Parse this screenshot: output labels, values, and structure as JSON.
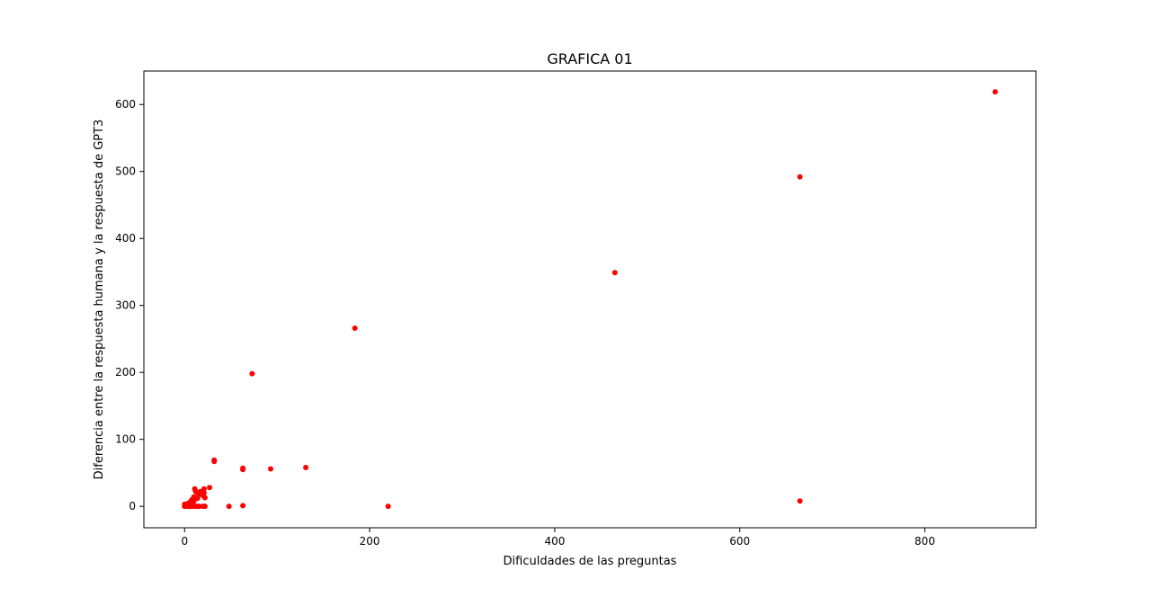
{
  "chart_data": {
    "type": "scatter",
    "title": "GRAFICA 01",
    "xlabel": "Dificuldades de las preguntas",
    "ylabel": "Diferencia entre la respuesta humana y la respuesta de GPT3",
    "xlim": [
      -44,
      920
    ],
    "ylim": [
      -32,
      650
    ],
    "x_ticks": [
      0,
      200,
      400,
      600,
      800
    ],
    "y_ticks": [
      0,
      100,
      200,
      300,
      400,
      500,
      600
    ],
    "x_tick_labels": [
      "0",
      "200",
      "400",
      "600",
      "800"
    ],
    "y_tick_labels": [
      "0",
      "100",
      "200",
      "300",
      "400",
      "500",
      "600"
    ],
    "grid": false,
    "legend": "none",
    "marker_color": "#ff0000",
    "series": [
      {
        "x": [
          876,
          665,
          665,
          465,
          184,
          220,
          73,
          131,
          93,
          63,
          63,
          63,
          32,
          32,
          48,
          27,
          21,
          21,
          22,
          20,
          17,
          16,
          14,
          14,
          12,
          11,
          10,
          10,
          9,
          8,
          8,
          7,
          7,
          6,
          6,
          5,
          5,
          4,
          4,
          3,
          3,
          2,
          2,
          1,
          1,
          0,
          0,
          0,
          5,
          7,
          9,
          12,
          14,
          16,
          20,
          22
        ],
        "y": [
          619,
          492,
          8,
          349,
          266,
          0,
          198,
          58,
          56,
          57,
          55,
          1,
          69,
          67,
          0,
          28,
          26,
          20,
          13,
          16,
          22,
          18,
          12,
          20,
          22,
          26,
          14,
          8,
          6,
          10,
          3,
          8,
          4,
          2,
          6,
          1,
          5,
          3,
          0,
          2,
          4,
          1,
          3,
          0,
          2,
          0,
          1,
          3,
          0,
          0,
          0,
          0,
          0,
          0,
          0,
          0
        ]
      }
    ]
  }
}
